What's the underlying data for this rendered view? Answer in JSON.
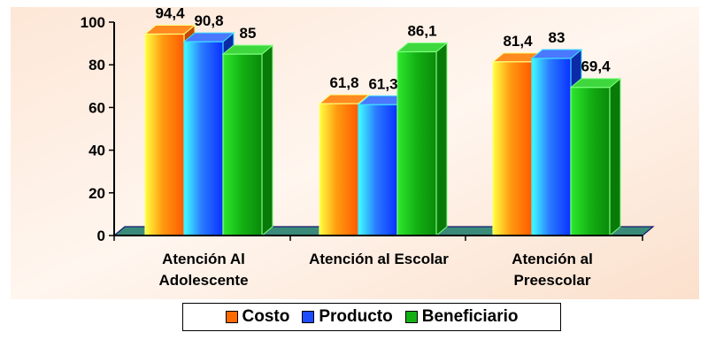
{
  "chart_data": {
    "type": "bar",
    "title": "",
    "xlabel": "",
    "ylabel": "",
    "ylim": [
      0,
      100
    ],
    "yticks": [
      "0",
      "20",
      "40",
      "60",
      "80",
      "100"
    ],
    "categories": [
      [
        "Atención Al",
        "Adolescente"
      ],
      [
        "Atención al Escolar"
      ],
      [
        "Atención al",
        "Preescolar"
      ]
    ],
    "series": [
      {
        "name": "Costo",
        "values": [
          94.4,
          61.8,
          81.4
        ],
        "labels": [
          "94,4",
          "61,8",
          "81,4"
        ],
        "color": "#ff6a00"
      },
      {
        "name": "Producto",
        "values": [
          90.8,
          61.3,
          83
        ],
        "labels": [
          "90,8",
          "61,3",
          "83"
        ],
        "color": "#1c4dff"
      },
      {
        "name": "Beneficiario",
        "values": [
          85,
          86.1,
          69.4
        ],
        "labels": [
          "85",
          "86,1",
          "69,4"
        ],
        "color": "#13b013"
      }
    ],
    "legend_position": "bottom",
    "grid": false
  }
}
